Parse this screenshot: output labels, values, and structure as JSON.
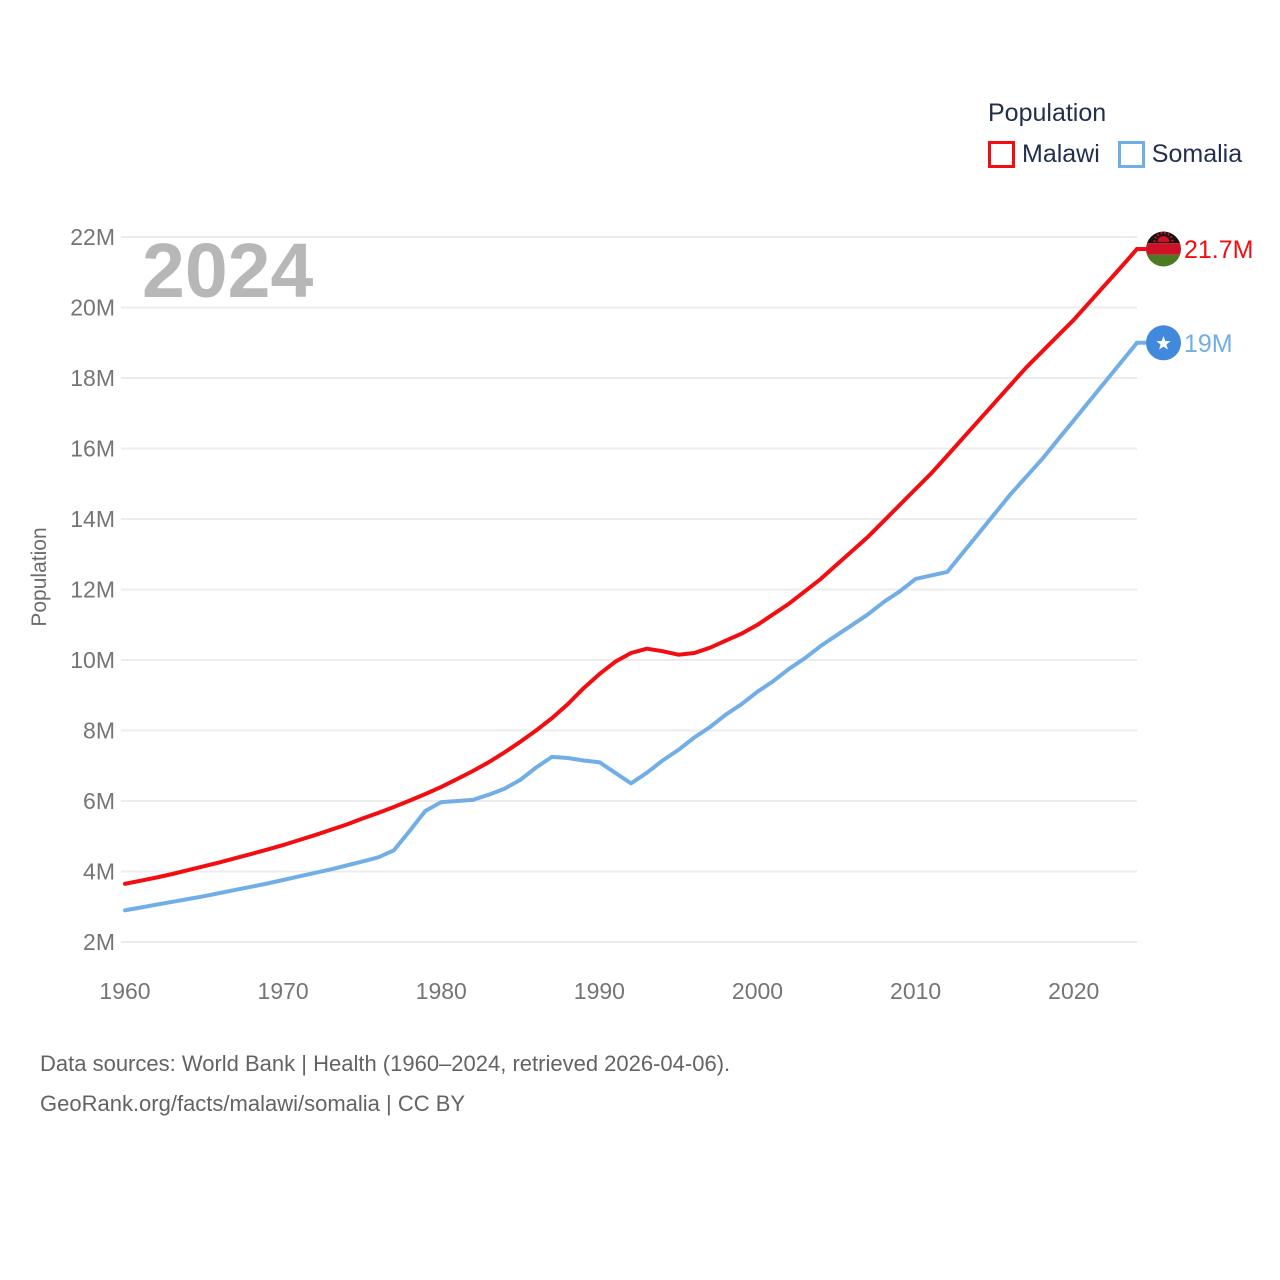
{
  "legend": {
    "title": "Population",
    "items": [
      {
        "label": "Malawi",
        "color": "#f20d11"
      },
      {
        "label": "Somalia",
        "color": "#72aee6"
      }
    ]
  },
  "watermark": "2024",
  "footer": {
    "line1": "Data sources: World Bank | Health (1960–2024, retrieved 2026-04-06).",
    "line2": "GeoRank.org/facts/malawi/somalia | CC BY"
  },
  "colors": {
    "grid": "#ececec",
    "tick_label": "#757575",
    "axis_title": "#6b6b6b",
    "legend_text": "#22304e",
    "watermark": "#b7b7b7",
    "footer_text": "#636363",
    "malawi_flag_black": "#161310",
    "malawi_flag_red": "#ce1126",
    "malawi_flag_green": "#4a7a21",
    "somalia_flag_blue": "#4189dd",
    "somalia_flag_star": "#ffffff"
  },
  "chart_data": {
    "type": "line",
    "title": "Population",
    "xlabel": "",
    "ylabel": "Population",
    "grid": true,
    "legend_position": "top-right",
    "xlim": [
      1960,
      2024
    ],
    "ylim": [
      2,
      22
    ],
    "yticks": [
      {
        "value": 2,
        "label": "2M"
      },
      {
        "value": 4,
        "label": "4M"
      },
      {
        "value": 6,
        "label": "6M"
      },
      {
        "value": 8,
        "label": "8M"
      },
      {
        "value": 10,
        "label": "10M"
      },
      {
        "value": 12,
        "label": "12M"
      },
      {
        "value": 14,
        "label": "14M"
      },
      {
        "value": 16,
        "label": "16M"
      },
      {
        "value": 18,
        "label": "18M"
      },
      {
        "value": 20,
        "label": "20M"
      },
      {
        "value": 22,
        "label": "22M"
      }
    ],
    "xticks": [
      {
        "value": 1960,
        "label": "1960"
      },
      {
        "value": 1970,
        "label": "1970"
      },
      {
        "value": 1980,
        "label": "1980"
      },
      {
        "value": 1990,
        "label": "1990"
      },
      {
        "value": 2000,
        "label": "2000"
      },
      {
        "value": 2010,
        "label": "2010"
      },
      {
        "value": 2020,
        "label": "2020"
      }
    ],
    "years": [
      1960,
      1961,
      1962,
      1963,
      1964,
      1965,
      1966,
      1967,
      1968,
      1969,
      1970,
      1971,
      1972,
      1973,
      1974,
      1975,
      1976,
      1977,
      1978,
      1979,
      1980,
      1981,
      1982,
      1983,
      1984,
      1985,
      1986,
      1987,
      1988,
      1989,
      1990,
      1991,
      1992,
      1993,
      1994,
      1995,
      1996,
      1997,
      1998,
      1999,
      2000,
      2001,
      2002,
      2003,
      2004,
      2005,
      2006,
      2007,
      2008,
      2009,
      2010,
      2011,
      2012,
      2013,
      2014,
      2015,
      2016,
      2017,
      2018,
      2019,
      2020,
      2021,
      2022,
      2023,
      2024
    ],
    "series": [
      {
        "name": "Malawi",
        "color": "#f20d11",
        "end_label": "21.7M",
        "end_value_millions": 21.7,
        "flag": "malawi",
        "values": [
          3.65,
          3.74,
          3.83,
          3.93,
          4.04,
          4.15,
          4.26,
          4.38,
          4.5,
          4.62,
          4.75,
          4.89,
          5.03,
          5.18,
          5.33,
          5.5,
          5.66,
          5.83,
          6.01,
          6.2,
          6.4,
          6.62,
          6.85,
          7.1,
          7.38,
          7.68,
          8.0,
          8.35,
          8.75,
          9.2,
          9.6,
          9.95,
          10.2,
          10.32,
          10.25,
          10.15,
          10.2,
          10.35,
          10.55,
          10.75,
          11.0,
          11.3,
          11.6,
          11.95,
          12.3,
          12.7,
          13.1,
          13.5,
          13.95,
          14.4,
          14.85,
          15.3,
          15.8,
          16.3,
          16.8,
          17.3,
          17.8,
          18.3,
          18.75,
          19.2,
          19.65,
          20.15,
          20.65,
          21.15,
          21.66
        ]
      },
      {
        "name": "Somalia",
        "color": "#72aee6",
        "end_label": "19M",
        "end_value_millions": 19.0,
        "flag": "somalia",
        "values": [
          2.9,
          2.98,
          3.06,
          3.14,
          3.22,
          3.3,
          3.39,
          3.48,
          3.57,
          3.66,
          3.76,
          3.86,
          3.96,
          4.06,
          4.17,
          4.28,
          4.4,
          4.6,
          5.15,
          5.72,
          5.97,
          6.0,
          6.03,
          6.18,
          6.35,
          6.6,
          6.95,
          7.25,
          7.22,
          7.15,
          7.1,
          6.8,
          6.5,
          6.8,
          7.15,
          7.45,
          7.8,
          8.1,
          8.45,
          8.75,
          9.1,
          9.4,
          9.75,
          10.05,
          10.4,
          10.7,
          11.0,
          11.3,
          11.65,
          11.95,
          12.3,
          12.4,
          12.5,
          13.05,
          13.6,
          14.15,
          14.7,
          15.2,
          15.7,
          16.25,
          16.8,
          17.35,
          17.9,
          18.45,
          19.0
        ]
      }
    ]
  }
}
